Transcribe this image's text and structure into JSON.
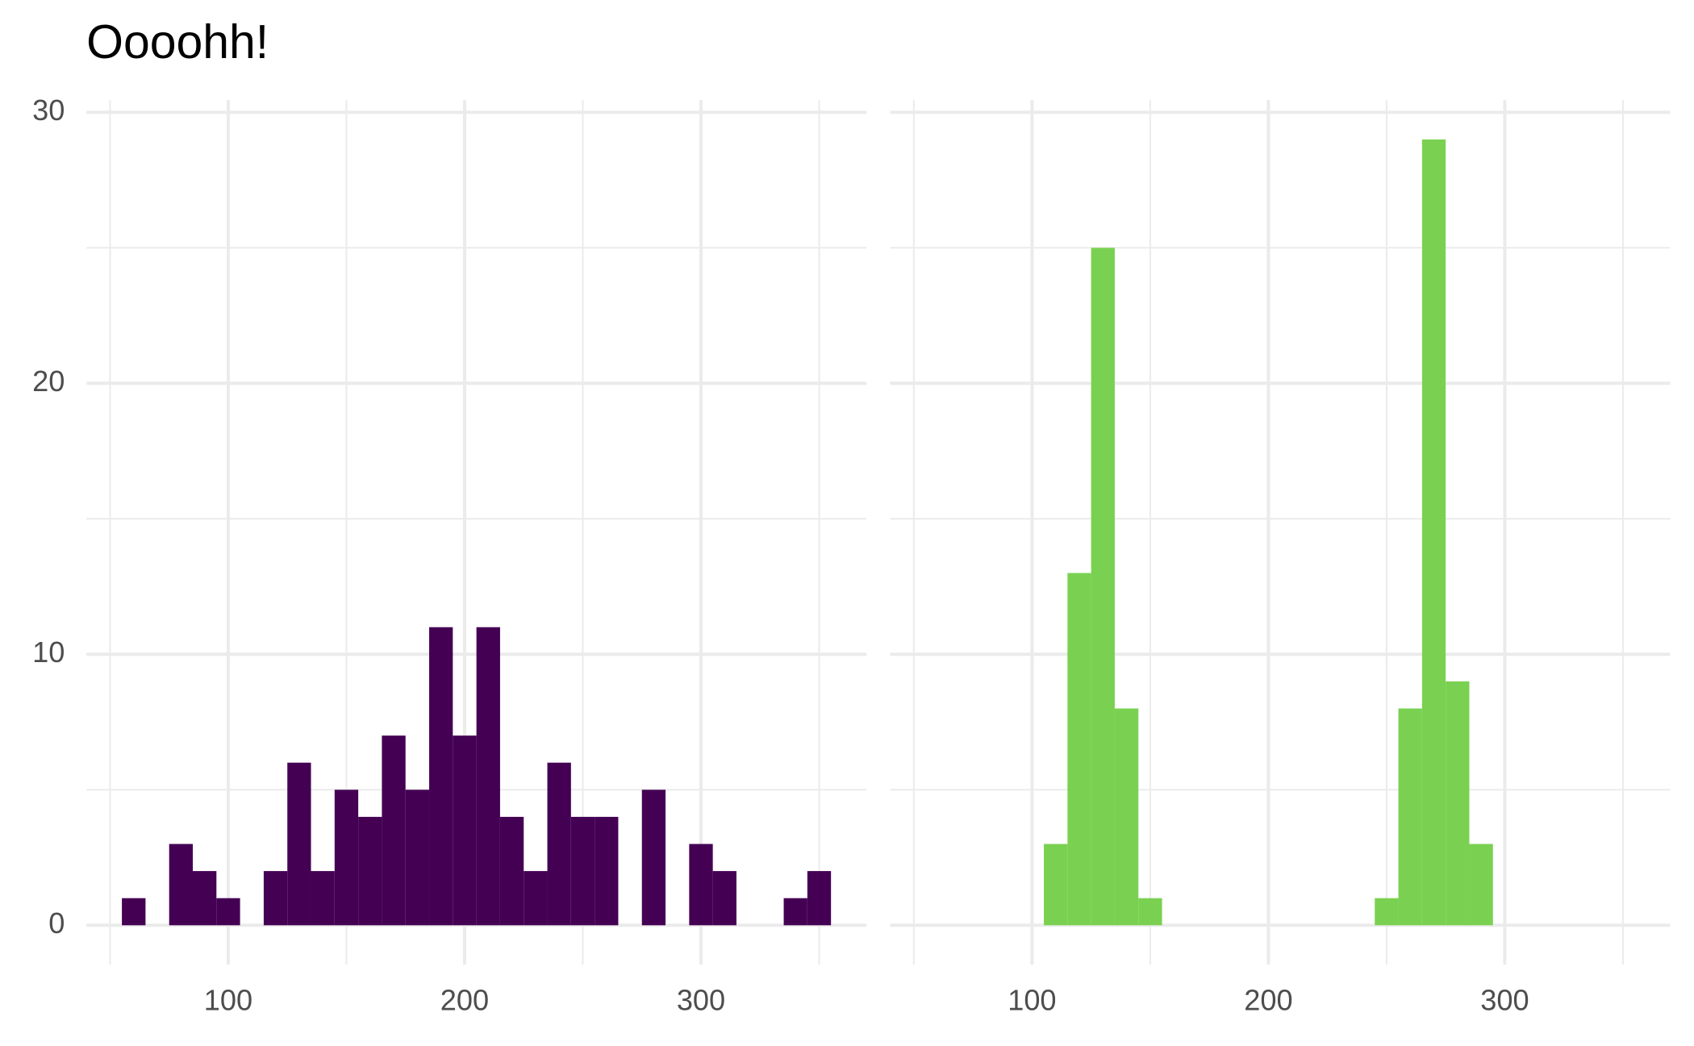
{
  "chart_data": [
    {
      "type": "histogram",
      "title": "Oooohh!",
      "bins": [
        55,
        65,
        75,
        85,
        95,
        105,
        115,
        125,
        135,
        145,
        155,
        165,
        175,
        185,
        195,
        205,
        215,
        225,
        235,
        245,
        255,
        265,
        275,
        285,
        295,
        305,
        315,
        325,
        335,
        345,
        355
      ],
      "counts": [
        1,
        0,
        3,
        2,
        1,
        0,
        2,
        6,
        2,
        5,
        4,
        7,
        5,
        11,
        7,
        11,
        4,
        2,
        6,
        4,
        4,
        0,
        5,
        0,
        3,
        2,
        0,
        0,
        1,
        2
      ],
      "color": "#440154",
      "xlim": [
        40,
        370
      ],
      "xticks": [
        100,
        200,
        300
      ],
      "xminorticks": [
        50,
        150,
        250,
        350
      ],
      "ylim": [
        -1.45,
        30.45
      ],
      "yticks": [
        0,
        10,
        20,
        30
      ],
      "yminorticks": [
        5,
        15,
        25
      ],
      "grid": true,
      "ytick_labels": true
    },
    {
      "type": "histogram",
      "bins": [
        55,
        65,
        75,
        85,
        95,
        105,
        115,
        125,
        135,
        145,
        155,
        165,
        175,
        185,
        195,
        205,
        215,
        225,
        235,
        245,
        255,
        265,
        275,
        285,
        295,
        305,
        315,
        325,
        335,
        345,
        355
      ],
      "counts": [
        0,
        0,
        0,
        0,
        0,
        3,
        13,
        25,
        8,
        1,
        0,
        0,
        0,
        0,
        0,
        0,
        0,
        0,
        0,
        1,
        8,
        29,
        9,
        3,
        0,
        0,
        0,
        0,
        0,
        0
      ],
      "color": "#7ad151",
      "xlim": [
        40,
        370
      ],
      "xticks": [
        100,
        200,
        300
      ],
      "xminorticks": [
        50,
        150,
        250,
        350
      ],
      "ylim": [
        -1.45,
        30.45
      ],
      "yticks": [
        0,
        10,
        20,
        30
      ],
      "yminorticks": [
        5,
        15,
        25
      ],
      "grid": true,
      "ytick_labels": false
    }
  ]
}
